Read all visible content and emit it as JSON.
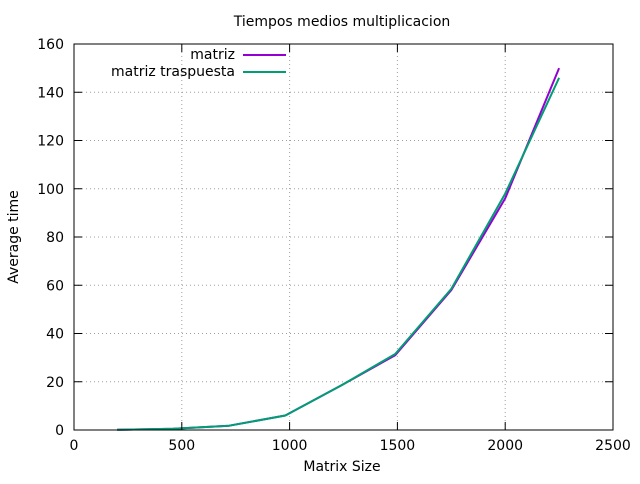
{
  "chart_data": {
    "type": "line",
    "title": "Tiempos medios multiplicacion",
    "xlabel": "Matrix Size",
    "ylabel": "Average time",
    "xlim": [
      0,
      2500
    ],
    "ylim": [
      0,
      160
    ],
    "xticks": [
      0,
      500,
      1000,
      1500,
      2000,
      2500
    ],
    "yticks": [
      0,
      20,
      40,
      60,
      80,
      100,
      120,
      140,
      160
    ],
    "grid": true,
    "legend_position": "top-left",
    "series": [
      {
        "name": "matriz",
        "color": "#9400d3",
        "x": [
          200,
          460,
          720,
          980,
          1240,
          1490,
          1750,
          2000,
          2250
        ],
        "y": [
          0.1,
          0.5,
          1.8,
          6,
          18.5,
          31,
          58,
          96,
          150
        ]
      },
      {
        "name": "matriz traspuesta",
        "color": "#009e73",
        "x": [
          200,
          460,
          720,
          980,
          1240,
          1490,
          1750,
          2000,
          2250
        ],
        "y": [
          0.1,
          0.5,
          1.8,
          6,
          18.5,
          31.5,
          58.5,
          98,
          146
        ]
      }
    ]
  }
}
